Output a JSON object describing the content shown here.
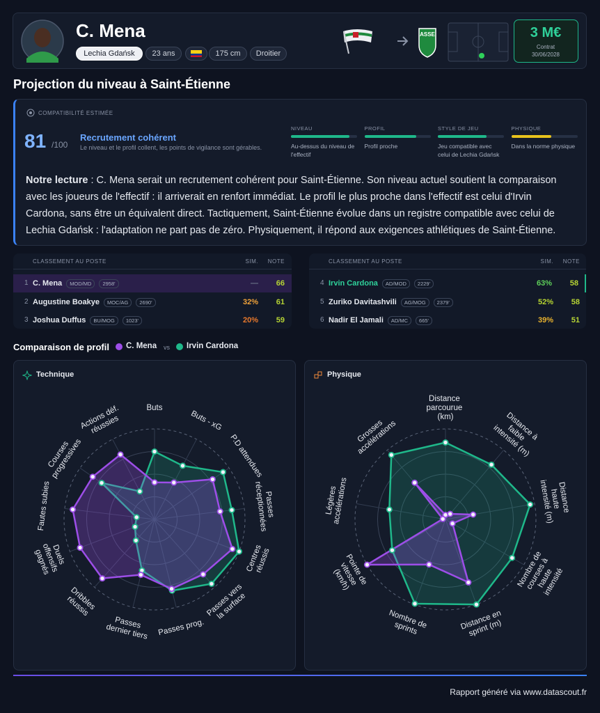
{
  "header": {
    "name": "C. Mena",
    "club": "Lechia Gdańsk",
    "age": "23 ans",
    "height": "175 cm",
    "foot": "Droitier",
    "badge": "ASSE",
    "price": "3 M€",
    "contract_label": "Contrat",
    "contract_date": "30/06/2028"
  },
  "projection": {
    "title": "Projection du niveau à Saint-Étienne",
    "label": "COMPATIBILITÉ ESTIMÉE",
    "score": 81,
    "score_max": "/100",
    "verdict": "Recrutement cohérent",
    "verdict_text": "Le niveau et le profil collent, les points de vigilance sont gérables.",
    "criteria": [
      {
        "label": "NIVEAU",
        "level": 88,
        "color": "#1fb88a",
        "text": "Au-dessus du niveau de l'effectif"
      },
      {
        "label": "PROFIL",
        "level": 78,
        "color": "#1fb88a",
        "text": "Profil proche"
      },
      {
        "label": "STYLE DE JEU",
        "level": 74,
        "color": "#1fb88a",
        "text": "Jeu compatible avec celui de Lechia Gdańsk"
      },
      {
        "label": "PHYSIQUE",
        "level": 60,
        "color": "#e8c21c",
        "text": "Dans la norme physique"
      }
    ],
    "reading_label": "Notre lecture",
    "reading_text": ": C. Mena serait un recrutement cohérent pour Saint-Étienne. Son niveau actuel soutient la comparaison avec les joueurs de l'effectif : il arriverait en renfort immédiat. Le profil le plus proche dans l'effectif est celui d'Irvin Cardona, sans être un équivalent direct. Tactiquement, Saint-Étienne évolue dans un registre compatible avec celui de Lechia Gdańsk : l'adaptation ne part pas de zéro. Physiquement, il répond aux exigences athlétiques de Saint-Étienne."
  },
  "ranking": {
    "title": "CLASSEMENT AU POSTE",
    "sim": "SIM.",
    "note": "NOTE",
    "left": [
      {
        "rank": 1,
        "name": "C. Mena",
        "pos": "MOD/MD",
        "minutes": "2958'",
        "sim": "—",
        "sim_color": "#6b7488",
        "note": 66
      },
      {
        "rank": 2,
        "name": "Augustine Boakye",
        "pos": "MOC/AG",
        "minutes": "2690'",
        "sim": "32%",
        "sim_color": "#f0a23a",
        "note": 61
      },
      {
        "rank": 3,
        "name": "Joshua Duffus",
        "pos": "BU/MOG",
        "minutes": "1023'",
        "sim": "20%",
        "sim_color": "#e9792c",
        "note": 59
      }
    ],
    "right": [
      {
        "rank": 4,
        "name": "Irvin Cardona",
        "pos": "AD/MOD",
        "minutes": "2229'",
        "sim": "63%",
        "sim_color": "#5fd05a",
        "note": 58
      },
      {
        "rank": 5,
        "name": "Zuriko Davitashvili",
        "pos": "AG/MOG",
        "minutes": "2379'",
        "sim": "52%",
        "sim_color": "#b6d431",
        "note": 58
      },
      {
        "rank": 6,
        "name": "Nadir El Jamali",
        "pos": "AD/MC",
        "minutes": "665'",
        "sim": "39%",
        "sim_color": "#e8b22e",
        "note": 51
      }
    ]
  },
  "comparison": {
    "title": "Comparaison de profil",
    "vs": "vs"
  },
  "chart_data": [
    {
      "type": "radar",
      "title": "Technique",
      "categories": [
        "Buts",
        "Buts - xG",
        "P.D attendues",
        "Passes réceptionnées",
        "Centres réussis",
        "Passes vers la surface",
        "Passes prog.",
        "Passes dernier tiers",
        "Dribbles réussis",
        "Duels offensifs gagnés",
        "Fautes subies",
        "Courses progressives",
        "Actions déf. réussies"
      ],
      "series": [
        {
          "name": "Irvin Cardona",
          "color": "#1fb88a",
          "values": [
            75,
            67,
            92,
            86,
            100,
            95,
            81,
            58,
            31,
            23,
            20,
            71,
            35
          ]
        },
        {
          "name": "C. Mena",
          "color": "#9d4ee8",
          "values": [
            41,
            46,
            78,
            73,
            92,
            81,
            79,
            63,
            87,
            88,
            91,
            83,
            81
          ]
        }
      ],
      "rlim": [
        0,
        100
      ],
      "rticks": [
        25,
        50,
        75,
        100
      ]
    },
    {
      "type": "radar",
      "title": "Physique",
      "categories": [
        "Distance parcourue (km)",
        "Distance à faible intensité (m)",
        "Distance haute intensité (m)",
        "Nombre de courses à haute intensité",
        "Distance en sprint (m)",
        "Nombre de sprints",
        "Pointe de vitesse (km/h)",
        "Légères accélérations",
        "Grosses accélérations"
      ],
      "series": [
        {
          "name": "Irvin Cardona",
          "color": "#1fb88a",
          "values": [
            85,
            79,
            95,
            85,
            100,
            99,
            68,
            63,
            93
          ]
        },
        {
          "name": "C. Mena",
          "color": "#9d4ee8",
          "values": [
            5,
            8,
            31,
            9,
            74,
            53,
            100,
            3,
            53
          ]
        }
      ],
      "rlim": [
        0,
        100
      ],
      "rticks": [
        25,
        50,
        75,
        100
      ]
    }
  ],
  "footer": "Rapport généré via www.datascout.fr"
}
